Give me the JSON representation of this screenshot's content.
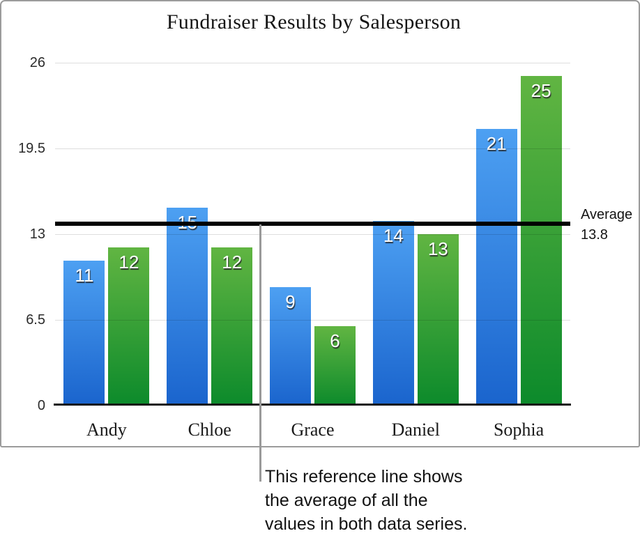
{
  "chart_data": {
    "type": "bar",
    "title": "Fundraiser Results by Salesperson",
    "categories": [
      "Andy",
      "Chloe",
      "Grace",
      "Daniel",
      "Sophia"
    ],
    "series": [
      {
        "id": "blue",
        "values": [
          11,
          15,
          9,
          14,
          21
        ],
        "color_top": "#4da0f2",
        "color_bottom": "#1a64cd"
      },
      {
        "id": "green",
        "values": [
          12,
          12,
          6,
          13,
          25
        ],
        "color_top": "#61b542",
        "color_bottom": "#0c8a2b"
      }
    ],
    "ylim": [
      0,
      26
    ],
    "y_ticks": [
      0,
      6.5,
      13,
      19.5,
      26
    ],
    "y_tick_labels": [
      "0",
      "6.5",
      "13",
      "19.5",
      "26"
    ],
    "grid": true,
    "legend": "none",
    "reference_line": {
      "value": 13.8,
      "color": "#000000",
      "label_line1": "Average",
      "label_line2": "13.8"
    }
  },
  "callout": {
    "line_color": "#9a9a9a",
    "text_lines": [
      "This reference line shows",
      "the average of all the",
      "values in both data series."
    ]
  },
  "frame": {
    "border_color": "#9b9b9b",
    "background": "#ffffff"
  }
}
